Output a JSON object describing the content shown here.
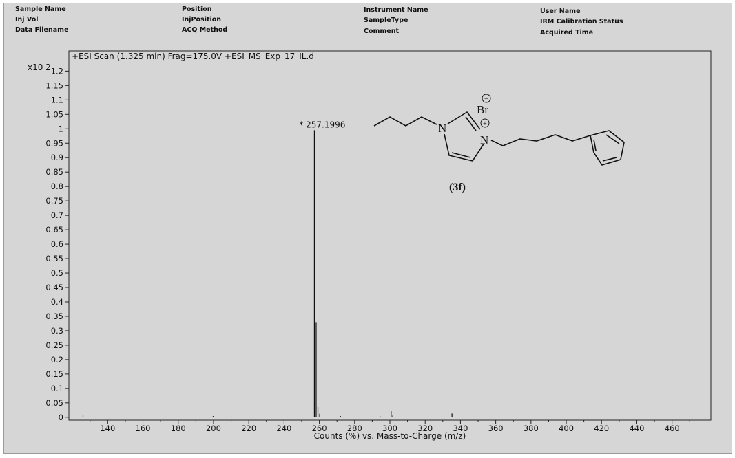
{
  "header": {
    "col1": [
      "Sample Name",
      "Inj Vol",
      "Data Filename"
    ],
    "col2": [
      "Position",
      "InjPosition",
      "ACQ Method"
    ],
    "col3": [
      "Instrument Name",
      "SampleType",
      "Comment"
    ],
    "col4": [
      "User Name",
      "IRM Calibration Status",
      "Acquired Time"
    ]
  },
  "chart_data": {
    "type": "bar",
    "title": "+ESI Scan (1.325 min) Frag=175.0V +ESI_MS_Exp_17_IL.d",
    "xlabel": "Counts (%) vs. Mass-to-Charge (m/z)",
    "ylabel": "",
    "y_multiplier_label": "x10 2",
    "xlim": [
      118,
      482
    ],
    "ylim": [
      -0.01,
      1.27
    ],
    "xticks": [
      140,
      160,
      180,
      200,
      220,
      240,
      260,
      280,
      300,
      320,
      340,
      360,
      380,
      400,
      420,
      440,
      460
    ],
    "yticks": [
      "0",
      "0.05",
      "0.1",
      "0.15",
      "0.2",
      "0.25",
      "0.3",
      "0.35",
      "0.4",
      "0.45",
      "0.5",
      "0.55",
      "0.6",
      "0.65",
      "0.7",
      "0.75",
      "0.8",
      "0.85",
      "0.9",
      "0.95",
      "1",
      "1.05",
      "1.1",
      "1.15",
      "1.2"
    ],
    "peaks": [
      {
        "mz": 126.0,
        "intensity": 0.006
      },
      {
        "mz": 199.8,
        "intensity": 0.004
      },
      {
        "mz": 257.2,
        "intensity": 0.995
      },
      {
        "mz": 257.5,
        "intensity": 0.055
      },
      {
        "mz": 258.2,
        "intensity": 0.33
      },
      {
        "mz": 259.2,
        "intensity": 0.035
      },
      {
        "mz": 260.2,
        "intensity": 0.012
      },
      {
        "mz": 272.0,
        "intensity": 0.004
      },
      {
        "mz": 294.5,
        "intensity": 0.003
      },
      {
        "mz": 300.7,
        "intensity": 0.022
      },
      {
        "mz": 301.6,
        "intensity": 0.006
      },
      {
        "mz": 335.2,
        "intensity": 0.013
      }
    ],
    "annotations": [
      {
        "mz": 257.2,
        "label": "* 257.1996"
      }
    ],
    "grid": false,
    "legend": "none"
  },
  "structure": {
    "compound_label": "(3f)",
    "atoms": {
      "n1": "N",
      "n2": "N",
      "bromine": "Br",
      "minus": "−",
      "plus": "+"
    }
  }
}
